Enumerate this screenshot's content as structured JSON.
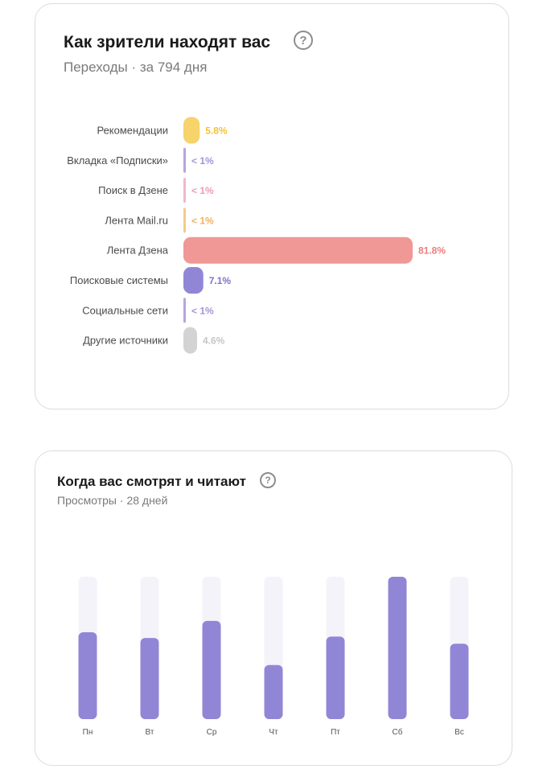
{
  "sources_card": {
    "title": "Как зрители находят вас",
    "subtitle": "Переходы · за 794 дня",
    "help_icon": "question-circle-icon"
  },
  "days_card": {
    "title": "Когда вас смотрят и читают",
    "subtitle": "Просмотры · 28 дней",
    "help_icon": "question-circle-icon"
  },
  "chart_data": [
    {
      "type": "bar",
      "orientation": "horizontal",
      "title": "Как зрители находят вас",
      "subtitle": "Переходы · за 794 дня",
      "categories": [
        "Рекомендации",
        "Вкладка «Подписки»",
        "Поиск в Дзене",
        "Лента Mail.ru",
        "Лента Дзена",
        "Поисковые системы",
        "Социальные сети",
        "Другие источники"
      ],
      "values": [
        5.8,
        0.5,
        0.5,
        0.5,
        81.8,
        7.1,
        0.5,
        4.6
      ],
      "value_labels": [
        "5.8%",
        "< 1%",
        "< 1%",
        "< 1%",
        "81.8%",
        "7.1%",
        "< 1%",
        "4.6%"
      ],
      "colors": [
        "#f7d36b",
        "#b7a4e0",
        "#f0b8c6",
        "#f5c98f",
        "#ef9896",
        "#9186d6",
        "#b7a4e0",
        "#d3d3d3"
      ],
      "label_colors": [
        "#f2c23a",
        "#a693d6",
        "#ec9db3",
        "#f0b160",
        "#ea7e7c",
        "#7d72c9",
        "#a693d6",
        "#c6c6c6"
      ],
      "xlim": [
        0,
        81.8
      ]
    },
    {
      "type": "bar",
      "orientation": "vertical",
      "title": "Когда вас смотрят и читают",
      "subtitle": "Просмотры · 28 дней",
      "categories": [
        "Пн",
        "Вт",
        "Ср",
        "Чт",
        "Пт",
        "Сб",
        "Вс"
      ],
      "values": [
        61,
        57,
        69,
        38,
        58,
        100,
        53
      ],
      "ylim": [
        0,
        100
      ],
      "bar_color": "#9186d6",
      "track_color": "#f4f3fa"
    }
  ]
}
